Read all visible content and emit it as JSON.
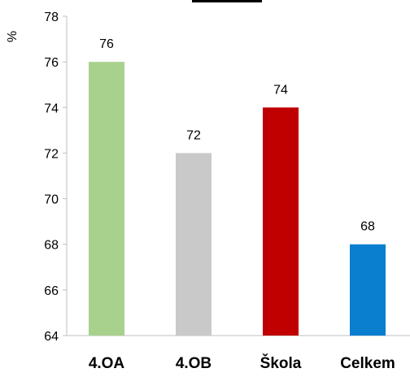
{
  "chart_data": {
    "type": "bar",
    "ylabel": "%",
    "categories": [
      "4.OA",
      "4.OB",
      "Škola",
      "Celkem"
    ],
    "values": [
      76,
      72,
      74,
      68
    ],
    "data_labels": [
      "76",
      "72",
      "74",
      "68"
    ],
    "colors": [
      "#a9d18e",
      "#c9c9c9",
      "#c00000",
      "#0a7fd0"
    ],
    "ylim": [
      64,
      78
    ],
    "yticks": [
      64,
      66,
      68,
      70,
      72,
      74,
      76,
      78
    ],
    "grid": false,
    "legend": "none"
  }
}
